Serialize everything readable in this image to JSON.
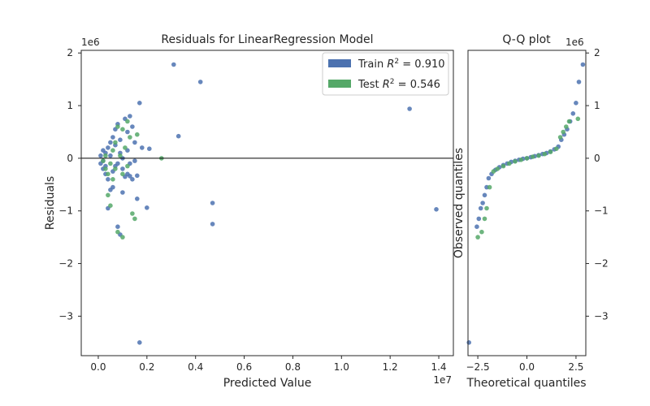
{
  "colors": {
    "train": "#4c72b0",
    "test": "#55a868",
    "spine": "#262626",
    "zero_line": "#000000"
  },
  "chart_data": [
    {
      "type": "scatter",
      "title": "Residuals for LinearRegression Model",
      "xlabel": "Predicted Value",
      "ylabel": "Residuals",
      "x_offset_label": "1e7",
      "y_offset_label": "1e6",
      "x_scale": 10000000,
      "y_scale": 1000000,
      "xlim": [
        -0.07,
        1.46
      ],
      "ylim": [
        -3.75,
        2.05
      ],
      "x_ticks": [
        0.0,
        0.2,
        0.4,
        0.6,
        0.8,
        1.0,
        1.2,
        1.4
      ],
      "x_tick_labels": [
        "0.0",
        "0.2",
        "0.4",
        "0.6",
        "0.8",
        "1.0",
        "1.2",
        "1.4"
      ],
      "y_ticks": [
        -3,
        -2,
        -1,
        0,
        1,
        2
      ],
      "y_tick_labels": [
        "−3",
        "−2",
        "−1",
        "0",
        "1",
        "2"
      ],
      "zero_line": 0,
      "grid": false,
      "legend": {
        "placement": "upper-right",
        "entries": [
          {
            "label": "Train R² = 0.910",
            "prefix": "Train",
            "value": "0.910",
            "series": "train"
          },
          {
            "label": "Test R² = 0.546",
            "prefix": "Test",
            "value": "0.546",
            "series": "test"
          }
        ]
      },
      "series": [
        {
          "name": "Train R² = 0.910",
          "color_key": "train",
          "points": [
            [
              0.31,
              1.78
            ],
            [
              0.42,
              1.45
            ],
            [
              1.28,
              0.94
            ],
            [
              1.39,
              -0.97
            ],
            [
              0.17,
              1.05
            ],
            [
              0.33,
              0.42
            ],
            [
              0.21,
              0.18
            ],
            [
              0.47,
              -0.85
            ],
            [
              0.47,
              -1.25
            ],
            [
              0.17,
              -3.5
            ],
            [
              0.2,
              -0.94
            ],
            [
              0.16,
              -0.77
            ],
            [
              0.13,
              -0.34
            ],
            [
              0.15,
              -0.05
            ],
            [
              0.12,
              -0.3
            ],
            [
              0.08,
              -1.3
            ],
            [
              0.09,
              -1.45
            ],
            [
              0.05,
              -0.6
            ],
            [
              0.06,
              -0.55
            ],
            [
              0.04,
              -0.95
            ],
            [
              0.1,
              -0.65
            ],
            [
              0.07,
              -0.15
            ],
            [
              0.02,
              -0.05
            ],
            [
              0.03,
              0.1
            ],
            [
              0.04,
              0.2
            ],
            [
              0.05,
              0.3
            ],
            [
              0.06,
              0.4
            ],
            [
              0.07,
              0.55
            ],
            [
              0.08,
              0.65
            ],
            [
              0.11,
              0.75
            ],
            [
              0.13,
              0.8
            ],
            [
              0.14,
              0.6
            ],
            [
              0.12,
              0.5
            ],
            [
              0.09,
              0.35
            ],
            [
              0.1,
              -0.2
            ],
            [
              0.11,
              -0.35
            ],
            [
              0.14,
              -0.4
            ],
            [
              0.16,
              -0.33
            ],
            [
              0.18,
              0.2
            ],
            [
              0.03,
              -0.3
            ],
            [
              0.02,
              -0.2
            ],
            [
              0.01,
              0.05
            ],
            [
              0.04,
              -0.4
            ],
            [
              0.06,
              -0.25
            ],
            [
              0.08,
              -0.1
            ],
            [
              0.09,
              0.1
            ],
            [
              0.1,
              0.0
            ],
            [
              0.12,
              0.15
            ],
            [
              0.13,
              -0.1
            ],
            [
              0.15,
              0.3
            ],
            [
              0.02,
              0.15
            ],
            [
              0.03,
              -0.15
            ],
            [
              0.05,
              0.05
            ],
            [
              0.07,
              0.25
            ],
            [
              0.01,
              -0.1
            ]
          ]
        },
        {
          "name": "Test R² = 0.546",
          "color_key": "test",
          "points": [
            [
              0.26,
              0.0
            ],
            [
              0.16,
              0.45
            ],
            [
              0.14,
              -1.05
            ],
            [
              0.15,
              -1.15
            ],
            [
              0.1,
              -1.5
            ],
            [
              0.08,
              -1.4
            ],
            [
              0.05,
              -0.9
            ],
            [
              0.04,
              -0.7
            ],
            [
              0.07,
              -0.2
            ],
            [
              0.08,
              0.6
            ],
            [
              0.1,
              0.55
            ],
            [
              0.12,
              0.7
            ],
            [
              0.13,
              0.4
            ],
            [
              0.11,
              0.2
            ],
            [
              0.09,
              0.05
            ],
            [
              0.06,
              0.15
            ],
            [
              0.05,
              -0.1
            ],
            [
              0.04,
              -0.3
            ],
            [
              0.03,
              0.05
            ],
            [
              0.02,
              -0.05
            ],
            [
              0.06,
              -0.4
            ],
            [
              0.07,
              0.3
            ],
            [
              0.1,
              -0.3
            ],
            [
              0.12,
              -0.15
            ],
            [
              0.03,
              -0.2
            ]
          ]
        }
      ]
    },
    {
      "type": "scatter",
      "title": "Q-Q plot",
      "xlabel": "Theoretical quantiles",
      "ylabel": "Observed quantiles",
      "y_offset_label": "1e6",
      "xlim": [
        -3.0,
        3.0
      ],
      "ylim": [
        -3.75,
        2.05
      ],
      "x_ticks": [
        -2.5,
        0.0,
        2.5
      ],
      "x_tick_labels": [
        "−2.5",
        "0.0",
        "2.5"
      ],
      "y_ticks": [
        -3,
        -2,
        -1,
        0,
        1,
        2
      ],
      "y_tick_labels": [
        "−3",
        "−2",
        "−1",
        "0",
        "1",
        "2"
      ],
      "y_axis_side": "right",
      "grid": false,
      "series": [
        {
          "name": "Train R² = 0.910",
          "color_key": "train",
          "points": [
            [
              -2.95,
              -3.5
            ],
            [
              -2.55,
              -1.3
            ],
            [
              -2.45,
              -1.15
            ],
            [
              -2.35,
              -0.95
            ],
            [
              -2.25,
              -0.85
            ],
            [
              -2.15,
              -0.7
            ],
            [
              -2.05,
              -0.55
            ],
            [
              -1.95,
              -0.38
            ],
            [
              -1.8,
              -0.3
            ],
            [
              -1.6,
              -0.22
            ],
            [
              -1.4,
              -0.17
            ],
            [
              -1.2,
              -0.13
            ],
            [
              -1.0,
              -0.1
            ],
            [
              -0.8,
              -0.07
            ],
            [
              -0.6,
              -0.05
            ],
            [
              -0.4,
              -0.03
            ],
            [
              -0.2,
              -0.01
            ],
            [
              0.0,
              0.0
            ],
            [
              0.2,
              0.02
            ],
            [
              0.4,
              0.04
            ],
            [
              0.6,
              0.06
            ],
            [
              0.8,
              0.08
            ],
            [
              1.0,
              0.1
            ],
            [
              1.2,
              0.13
            ],
            [
              1.4,
              0.17
            ],
            [
              1.6,
              0.22
            ],
            [
              1.75,
              0.35
            ],
            [
              1.9,
              0.45
            ],
            [
              2.05,
              0.55
            ],
            [
              2.2,
              0.7
            ],
            [
              2.35,
              0.85
            ],
            [
              2.5,
              1.05
            ],
            [
              2.65,
              1.45
            ],
            [
              2.85,
              1.78
            ]
          ]
        },
        {
          "name": "Test R² = 0.546",
          "color_key": "test",
          "points": [
            [
              -2.5,
              -1.5
            ],
            [
              -2.3,
              -1.4
            ],
            [
              -2.15,
              -1.15
            ],
            [
              -2.05,
              -0.95
            ],
            [
              -1.9,
              -0.55
            ],
            [
              -1.7,
              -0.25
            ],
            [
              -1.5,
              -0.2
            ],
            [
              -1.2,
              -0.15
            ],
            [
              -0.9,
              -0.1
            ],
            [
              -0.6,
              -0.06
            ],
            [
              -0.3,
              -0.03
            ],
            [
              0.0,
              0.0
            ],
            [
              0.3,
              0.03
            ],
            [
              0.6,
              0.05
            ],
            [
              0.9,
              0.08
            ],
            [
              1.2,
              0.12
            ],
            [
              1.5,
              0.18
            ],
            [
              1.7,
              0.4
            ],
            [
              1.85,
              0.5
            ],
            [
              2.0,
              0.6
            ],
            [
              2.15,
              0.7
            ],
            [
              2.6,
              0.75
            ]
          ]
        }
      ]
    }
  ]
}
